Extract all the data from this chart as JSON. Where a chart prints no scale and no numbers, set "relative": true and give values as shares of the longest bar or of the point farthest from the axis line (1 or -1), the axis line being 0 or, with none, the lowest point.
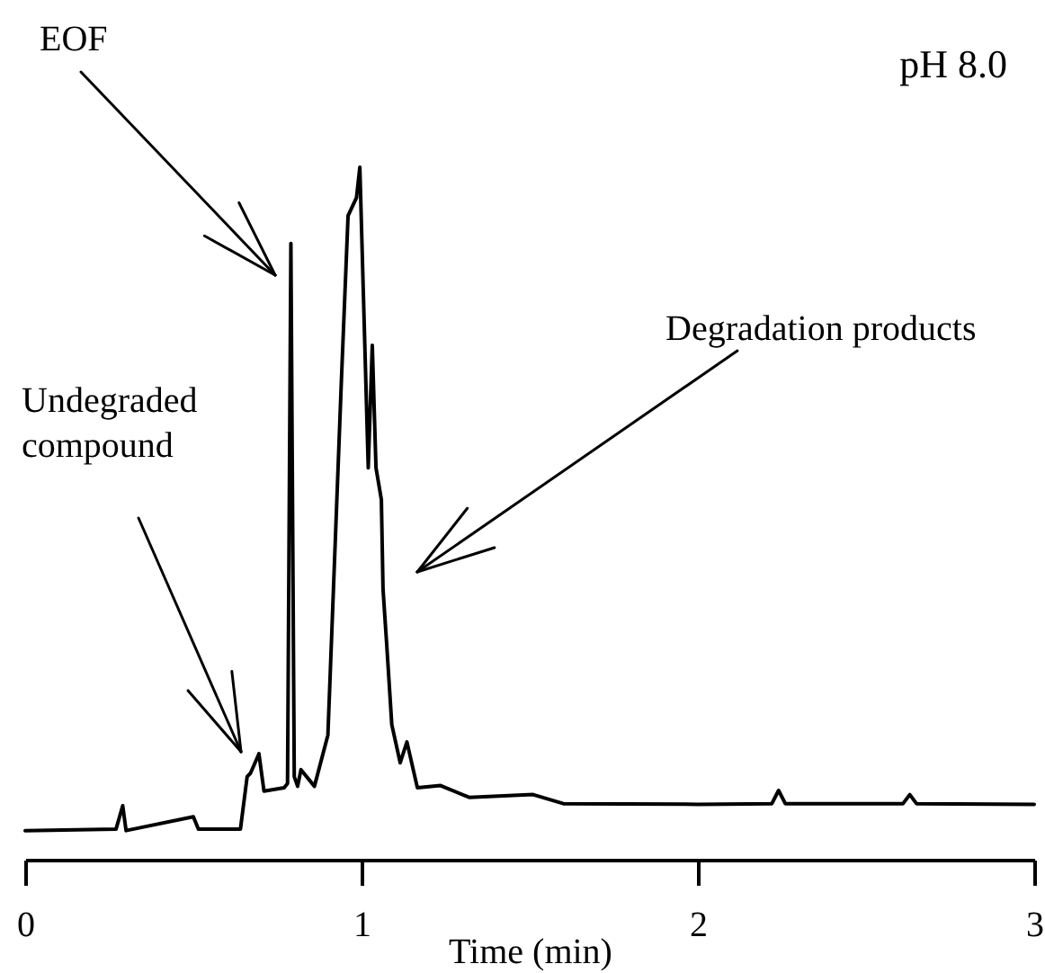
{
  "chart_data": {
    "type": "line",
    "relative": true,
    "xlabel": "Time (min)",
    "xlim": [
      0,
      3
    ],
    "xticks": [
      0,
      1,
      2,
      3
    ],
    "grid": false,
    "marker": "none",
    "line_style": "solid",
    "annotations": [
      "EOF",
      "Undegraded\ncompound",
      "Degradation products",
      "pH 8.0"
    ],
    "series": [
      {
        "color": "#000000",
        "x": [
          0,
          0.27,
          0.29,
          0.3,
          0.5,
          0.515,
          0.64,
          0.66,
          0.67,
          0.695,
          0.71,
          0.77,
          0.78,
          0.79,
          0.8,
          0.81,
          0.82,
          0.86,
          0.9,
          0.94,
          0.96,
          0.985,
          0.995,
          1.005,
          1.02,
          1.032,
          1.043,
          1.059,
          1.064,
          1.075,
          1.09,
          1.115,
          1.135,
          1.166,
          1.235,
          1.32,
          1.51,
          1.6,
          2.0,
          2.22,
          2.24,
          2.26,
          2.61,
          2.63,
          2.65,
          3.0
        ],
        "values": [
          0.042,
          0.044,
          0.078,
          0.042,
          0.062,
          0.044,
          0.044,
          0.12,
          0.125,
          0.153,
          0.099,
          0.104,
          0.11,
          0.89,
          0.12,
          0.106,
          0.13,
          0.106,
          0.18,
          0.69,
          0.93,
          0.956,
          1.0,
          0.826,
          0.566,
          0.743,
          0.566,
          0.52,
          0.39,
          0.31,
          0.195,
          0.14,
          0.17,
          0.104,
          0.107,
          0.09,
          0.094,
          0.081,
          0.08,
          0.081,
          0.1,
          0.081,
          0.081,
          0.094,
          0.081,
          0.08
        ]
      }
    ]
  }
}
